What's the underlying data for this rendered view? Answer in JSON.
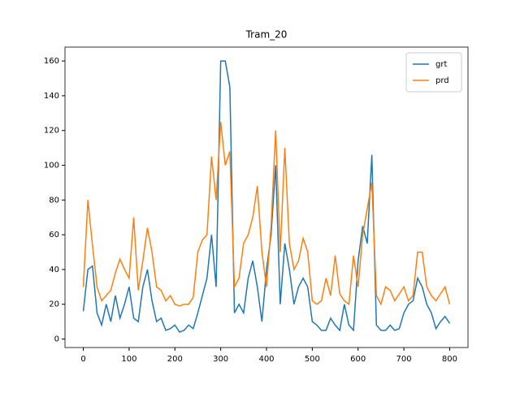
{
  "chart_data": {
    "type": "line",
    "title": "Tram_20",
    "x": [
      0,
      10,
      20,
      30,
      40,
      50,
      60,
      70,
      80,
      90,
      100,
      110,
      120,
      130,
      140,
      150,
      160,
      170,
      180,
      190,
      200,
      210,
      220,
      230,
      240,
      250,
      260,
      270,
      280,
      290,
      300,
      310,
      320,
      330,
      340,
      350,
      360,
      370,
      380,
      390,
      400,
      410,
      420,
      430,
      440,
      450,
      460,
      470,
      480,
      490,
      500,
      510,
      520,
      530,
      540,
      550,
      560,
      570,
      580,
      590,
      600,
      610,
      620,
      630,
      640,
      650,
      660,
      670,
      680,
      690,
      700,
      710,
      720,
      730,
      740,
      750,
      760,
      770,
      780,
      790,
      800
    ],
    "series": [
      {
        "name": "grt",
        "color": "#1f77b4",
        "values": [
          16,
          40,
          42,
          15,
          8,
          20,
          10,
          25,
          12,
          20,
          30,
          12,
          10,
          30,
          40,
          22,
          10,
          12,
          5,
          6,
          8,
          4,
          5,
          8,
          6,
          15,
          25,
          35,
          60,
          30,
          160,
          160,
          145,
          15,
          20,
          15,
          35,
          45,
          30,
          10,
          40,
          60,
          100,
          20,
          55,
          40,
          20,
          30,
          35,
          30,
          10,
          8,
          5,
          5,
          12,
          8,
          5,
          20,
          8,
          5,
          45,
          65,
          55,
          106,
          8,
          5,
          5,
          8,
          5,
          6,
          15,
          20,
          22,
          35,
          30,
          20,
          15,
          6,
          10,
          13,
          9
        ]
      },
      {
        "name": "prd",
        "color": "#ff7f0e",
        "values": [
          30,
          80,
          54,
          30,
          22,
          25,
          28,
          38,
          46,
          40,
          35,
          70,
          28,
          45,
          64,
          50,
          30,
          28,
          22,
          25,
          20,
          19,
          20,
          20,
          24,
          50,
          57,
          60,
          105,
          80,
          125,
          100,
          108,
          30,
          35,
          55,
          60,
          70,
          88,
          50,
          30,
          65,
          120,
          50,
          110,
          55,
          40,
          45,
          58,
          50,
          22,
          20,
          22,
          35,
          25,
          48,
          26,
          22,
          20,
          48,
          30,
          60,
          75,
          90,
          25,
          20,
          30,
          28,
          22,
          26,
          30,
          22,
          25,
          50,
          50,
          30,
          25,
          22,
          26,
          30,
          20
        ]
      }
    ],
    "xlim": [
      -40,
      840
    ],
    "ylim": [
      -4.9,
      168
    ],
    "xticks": [
      0,
      100,
      200,
      300,
      400,
      500,
      600,
      700,
      800
    ],
    "yticks": [
      0,
      20,
      40,
      60,
      80,
      100,
      120,
      140,
      160
    ],
    "legend": "upper right"
  }
}
